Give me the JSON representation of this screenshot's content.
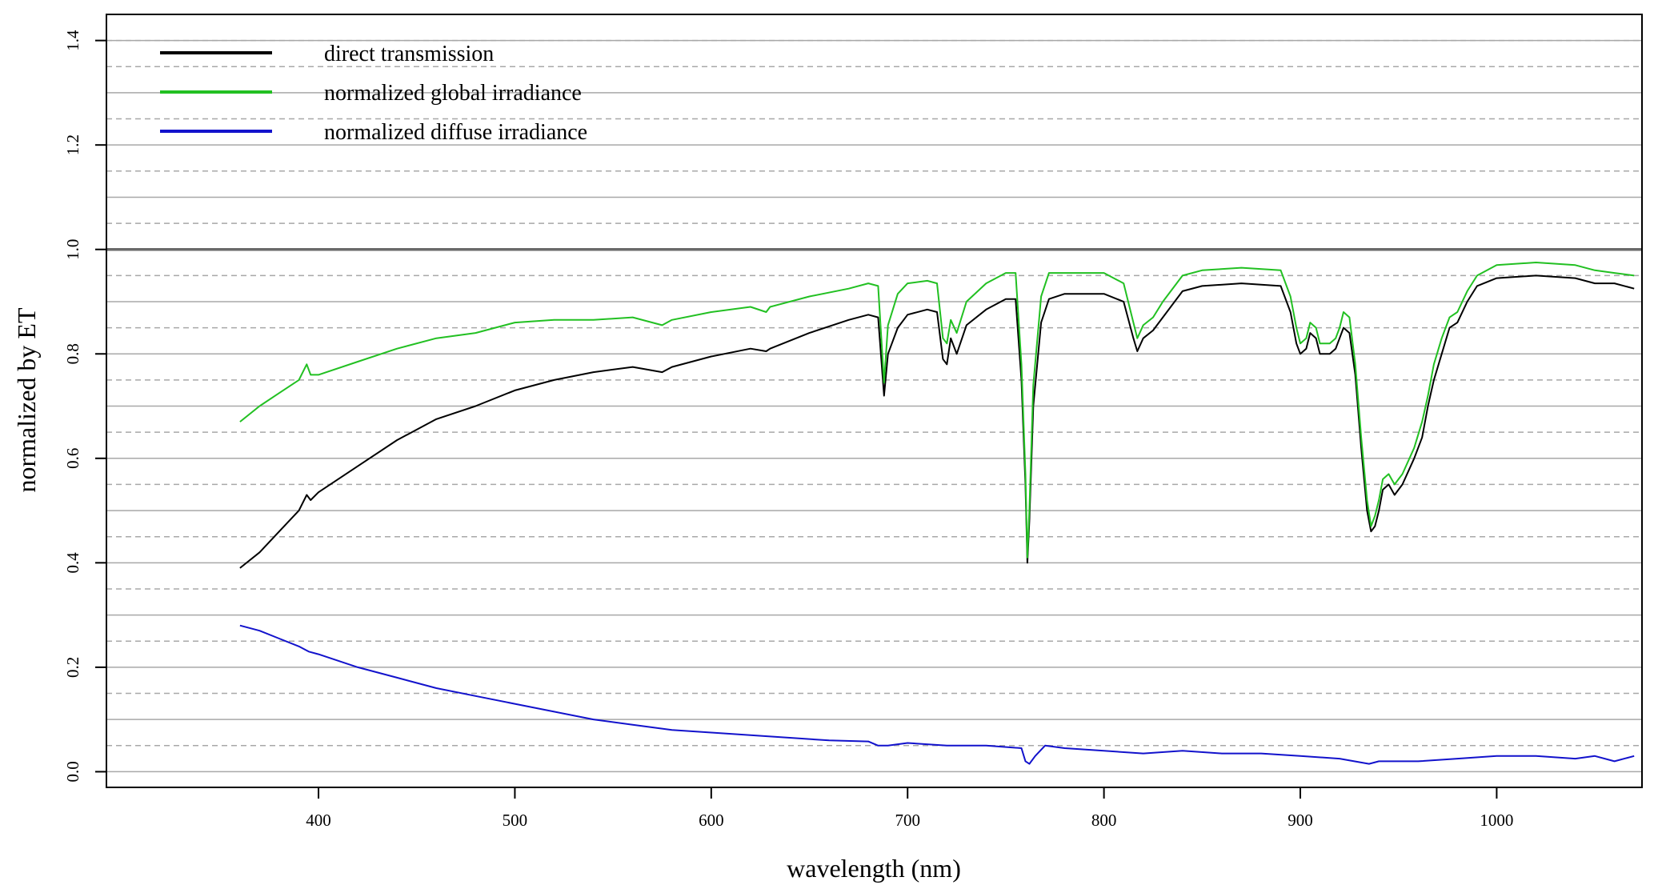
{
  "chart_data": {
    "type": "line",
    "title": "",
    "xlabel": "wavelength (nm)",
    "ylabel": "normalized by ET",
    "xlim": [
      292,
      1074
    ],
    "ylim": [
      -0.03,
      1.45
    ],
    "x_ticks": [
      400,
      500,
      600,
      700,
      800,
      900,
      1000
    ],
    "x_tick_labels": [
      "400",
      "500",
      "600",
      "700",
      "800",
      "900",
      "1000"
    ],
    "y_ticks": [
      0.0,
      0.2,
      0.4,
      0.6,
      0.8,
      1.0,
      1.2,
      1.4
    ],
    "y_tick_labels": [
      "0.0",
      "0.2",
      "0.4",
      "0.6",
      "0.8",
      "1.0",
      "1.2",
      "1.4"
    ],
    "grid": {
      "solid_y": [
        0.0,
        0.1,
        0.2,
        0.3,
        0.4,
        0.5,
        0.6,
        0.7,
        0.8,
        0.9,
        1.1,
        1.2,
        1.3,
        1.4
      ],
      "dashed_y": [
        0.05,
        0.15,
        0.25,
        0.35,
        0.45,
        0.55,
        0.65,
        0.75,
        0.85,
        0.95,
        1.05,
        1.15,
        1.25,
        1.35,
        1.4
      ],
      "reference_line_y": 1.0
    },
    "legend_placement": "top-left",
    "series": [
      {
        "name": "direct transmission",
        "color": "#000000",
        "x": [
          360,
          370,
          380,
          390,
          394,
          396,
          400,
          420,
          440,
          460,
          480,
          500,
          520,
          540,
          560,
          575,
          580,
          600,
          620,
          628,
          630,
          650,
          670,
          680,
          685,
          688,
          690,
          695,
          700,
          710,
          715,
          718,
          720,
          722,
          725,
          730,
          740,
          750,
          755,
          758,
          760,
          761,
          762,
          764,
          768,
          772,
          780,
          800,
          810,
          815,
          817,
          820,
          825,
          830,
          840,
          850,
          870,
          890,
          895,
          898,
          900,
          903,
          905,
          908,
          910,
          915,
          918,
          920,
          922,
          925,
          928,
          931,
          934,
          936,
          938,
          940,
          942,
          945,
          948,
          952,
          958,
          962,
          965,
          968,
          972,
          976,
          980,
          985,
          990,
          1000,
          1020,
          1040,
          1050,
          1060,
          1070
        ],
        "y": [
          0.39,
          0.42,
          0.46,
          0.5,
          0.53,
          0.52,
          0.535,
          0.585,
          0.635,
          0.675,
          0.7,
          0.73,
          0.75,
          0.765,
          0.775,
          0.765,
          0.775,
          0.795,
          0.81,
          0.805,
          0.81,
          0.84,
          0.865,
          0.875,
          0.87,
          0.72,
          0.8,
          0.85,
          0.875,
          0.885,
          0.88,
          0.79,
          0.78,
          0.83,
          0.8,
          0.855,
          0.885,
          0.905,
          0.905,
          0.75,
          0.55,
          0.4,
          0.48,
          0.7,
          0.86,
          0.905,
          0.915,
          0.915,
          0.9,
          0.83,
          0.805,
          0.83,
          0.845,
          0.87,
          0.92,
          0.93,
          0.935,
          0.93,
          0.88,
          0.82,
          0.8,
          0.81,
          0.84,
          0.83,
          0.8,
          0.8,
          0.81,
          0.83,
          0.85,
          0.84,
          0.76,
          0.62,
          0.5,
          0.46,
          0.47,
          0.5,
          0.54,
          0.55,
          0.53,
          0.55,
          0.6,
          0.64,
          0.7,
          0.75,
          0.8,
          0.85,
          0.86,
          0.9,
          0.93,
          0.945,
          0.95,
          0.945,
          0.935,
          0.935,
          0.925
        ]
      },
      {
        "name": "normalized global irradiance",
        "color": "#22c022",
        "x": [
          360,
          370,
          380,
          390,
          394,
          396,
          400,
          420,
          440,
          460,
          480,
          500,
          520,
          540,
          560,
          575,
          580,
          600,
          620,
          628,
          630,
          650,
          670,
          680,
          685,
          688,
          690,
          695,
          700,
          710,
          715,
          718,
          720,
          722,
          725,
          730,
          740,
          750,
          755,
          758,
          760,
          761,
          762,
          764,
          768,
          772,
          780,
          800,
          810,
          815,
          817,
          820,
          825,
          830,
          840,
          850,
          870,
          890,
          895,
          898,
          900,
          903,
          905,
          908,
          910,
          915,
          918,
          920,
          922,
          925,
          928,
          931,
          934,
          936,
          938,
          940,
          942,
          945,
          948,
          952,
          958,
          962,
          965,
          968,
          972,
          976,
          980,
          985,
          990,
          1000,
          1020,
          1040,
          1050,
          1060,
          1070
        ],
        "y": [
          0.67,
          0.7,
          0.725,
          0.75,
          0.78,
          0.76,
          0.76,
          0.785,
          0.81,
          0.83,
          0.84,
          0.86,
          0.865,
          0.865,
          0.87,
          0.855,
          0.865,
          0.88,
          0.89,
          0.88,
          0.89,
          0.91,
          0.925,
          0.935,
          0.93,
          0.745,
          0.855,
          0.915,
          0.935,
          0.94,
          0.935,
          0.83,
          0.82,
          0.865,
          0.84,
          0.9,
          0.935,
          0.955,
          0.955,
          0.78,
          0.57,
          0.41,
          0.5,
          0.74,
          0.91,
          0.955,
          0.955,
          0.955,
          0.935,
          0.86,
          0.83,
          0.855,
          0.87,
          0.9,
          0.95,
          0.96,
          0.965,
          0.96,
          0.91,
          0.85,
          0.82,
          0.83,
          0.86,
          0.85,
          0.82,
          0.82,
          0.83,
          0.85,
          0.88,
          0.87,
          0.78,
          0.64,
          0.52,
          0.47,
          0.49,
          0.52,
          0.56,
          0.57,
          0.55,
          0.57,
          0.62,
          0.67,
          0.72,
          0.78,
          0.83,
          0.87,
          0.88,
          0.92,
          0.95,
          0.97,
          0.975,
          0.97,
          0.96,
          0.955,
          0.95
        ]
      },
      {
        "name": "normalized diffuse irradiance",
        "color": "#1212cc",
        "x": [
          360,
          370,
          380,
          390,
          395,
          400,
          420,
          440,
          460,
          480,
          500,
          520,
          540,
          560,
          580,
          600,
          620,
          640,
          660,
          680,
          685,
          690,
          700,
          720,
          740,
          758,
          760,
          762,
          765,
          770,
          780,
          800,
          820,
          840,
          860,
          880,
          900,
          920,
          935,
          940,
          960,
          980,
          1000,
          1020,
          1040,
          1050,
          1060,
          1070
        ],
        "y": [
          0.28,
          0.27,
          0.255,
          0.24,
          0.23,
          0.225,
          0.2,
          0.18,
          0.16,
          0.145,
          0.13,
          0.115,
          0.1,
          0.09,
          0.08,
          0.075,
          0.07,
          0.065,
          0.06,
          0.058,
          0.05,
          0.05,
          0.055,
          0.05,
          0.05,
          0.045,
          0.02,
          0.015,
          0.03,
          0.05,
          0.045,
          0.04,
          0.035,
          0.04,
          0.035,
          0.035,
          0.03,
          0.025,
          0.015,
          0.02,
          0.02,
          0.025,
          0.03,
          0.03,
          0.025,
          0.03,
          0.02,
          0.03
        ]
      }
    ]
  }
}
